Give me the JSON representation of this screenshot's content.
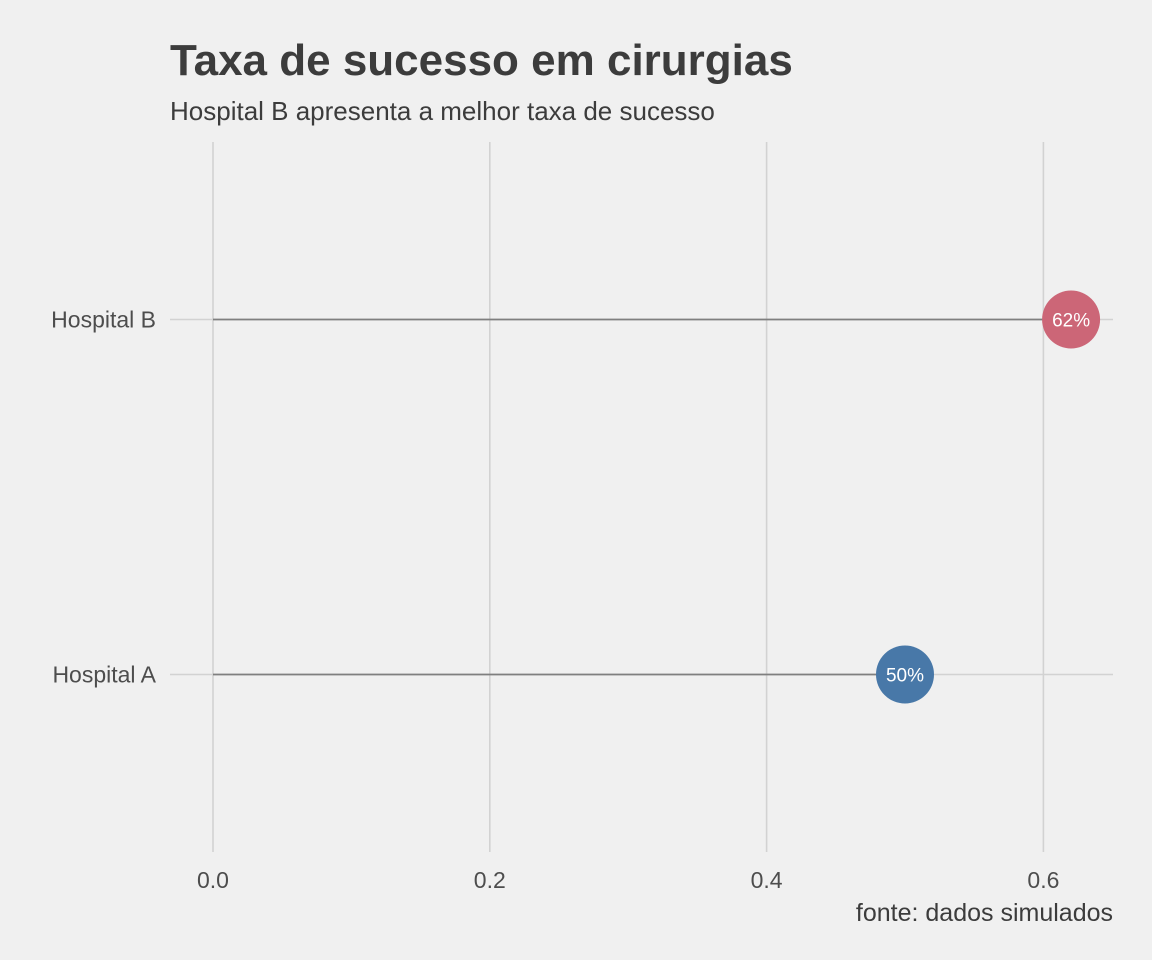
{
  "chart_data": {
    "type": "scatter",
    "style": "lollipop",
    "title": "Taxa de sucesso em cirurgias",
    "subtitle": "Hospital B apresenta a melhor taxa de sucesso",
    "caption": "fonte: dados simulados",
    "xlabel": "",
    "ylabel": "",
    "xlim": [
      0,
      0.65
    ],
    "x_ticks": [
      0,
      0.2,
      0.4,
      0.6
    ],
    "x_tick_labels": [
      "0.0",
      "0.2",
      "0.4",
      "0.6"
    ],
    "grid": true,
    "legend": "none",
    "categories": [
      "Hospital A",
      "Hospital B"
    ],
    "points": [
      {
        "category": "Hospital A",
        "value": 0.5,
        "label": "50%",
        "color": "#4878a8"
      },
      {
        "category": "Hospital B",
        "value": 0.62,
        "label": "62%",
        "color": "#cc6677"
      }
    ],
    "colors": {
      "background": "#f0f0f0",
      "grid": "#d2d2d2",
      "segment": "#7f7f7f",
      "text": "#3c3c3c",
      "tick_text": "#4d4d4d"
    }
  }
}
